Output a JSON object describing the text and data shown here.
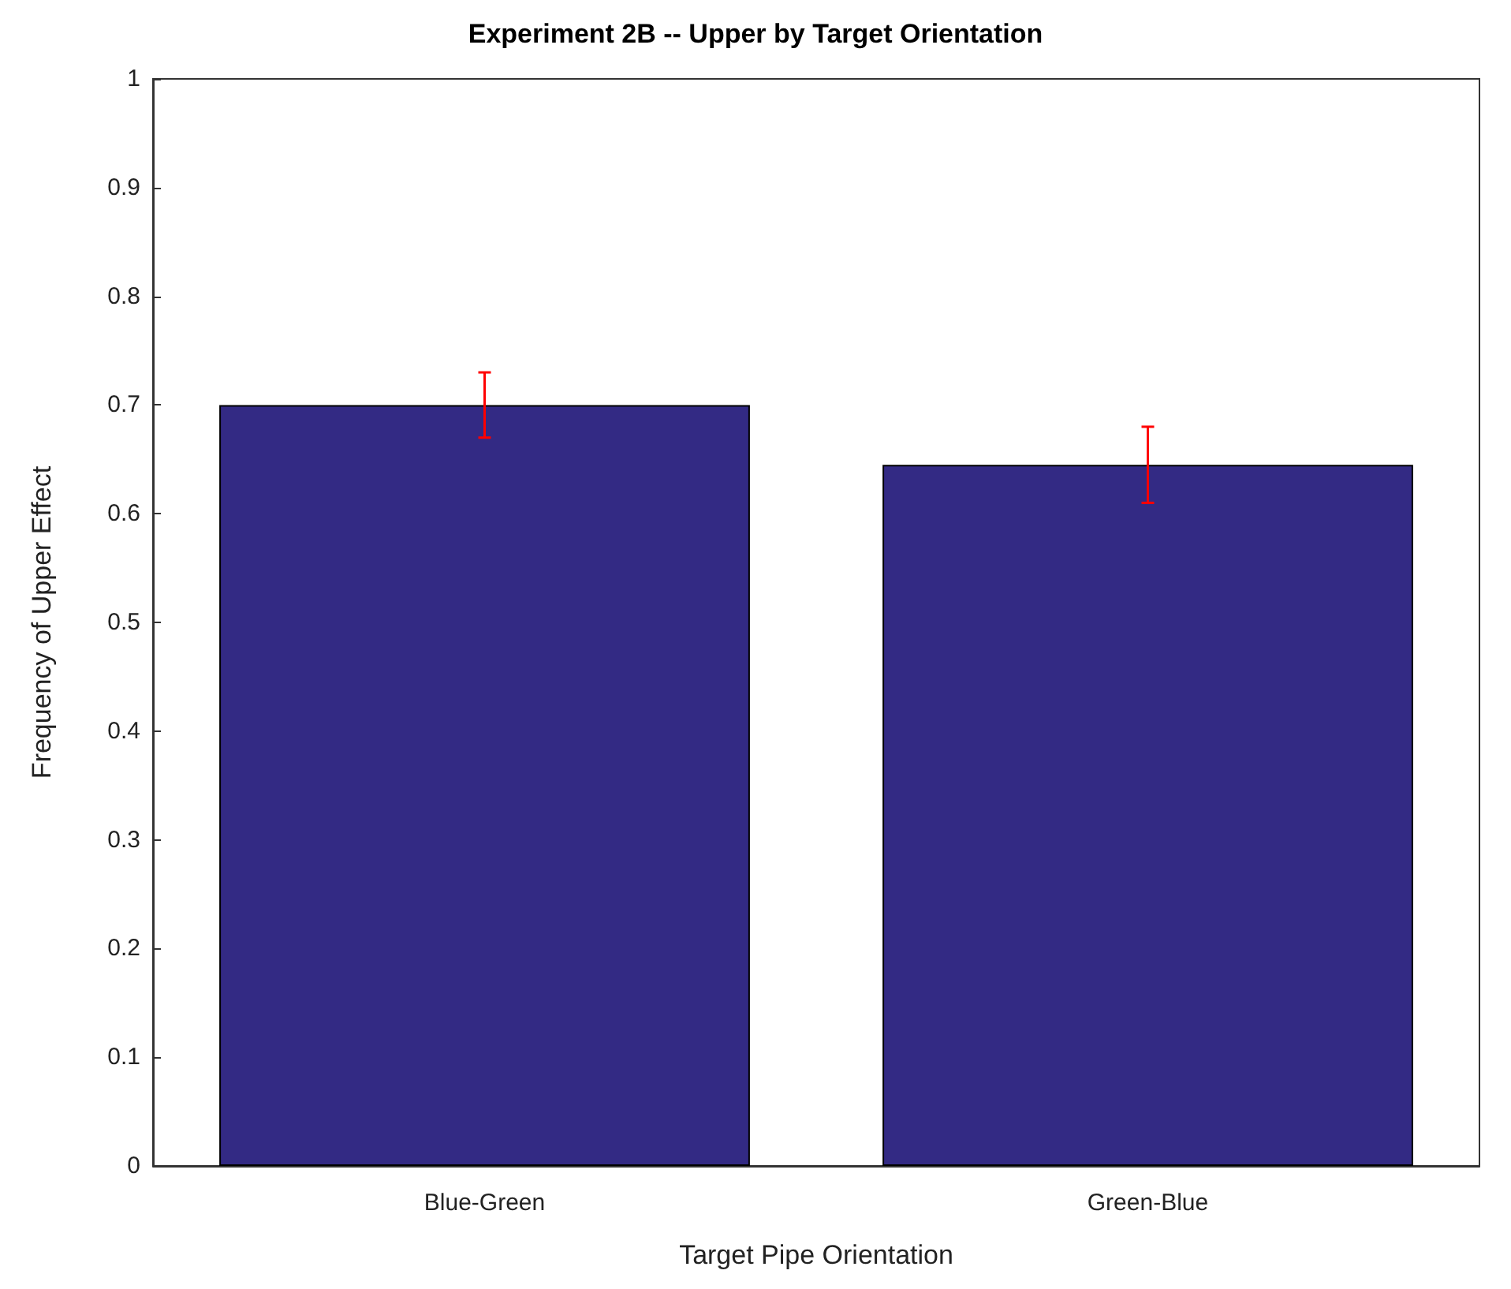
{
  "chart_data": {
    "type": "bar",
    "title": "Experiment 2B -- Upper by Target Orientation",
    "xlabel": "Target Pipe Orientation",
    "ylabel": "Frequency of Upper Effect",
    "categories": [
      "Blue-Green",
      "Green-Blue"
    ],
    "values": [
      0.7,
      0.645
    ],
    "errors": [
      0.03,
      0.035
    ],
    "color": "#332a84",
    "ylim": [
      0,
      1
    ],
    "yticks": [
      0,
      0.1,
      0.2,
      0.3,
      0.4,
      0.5,
      0.6,
      0.7,
      0.8,
      0.9,
      1
    ],
    "grid": false
  }
}
